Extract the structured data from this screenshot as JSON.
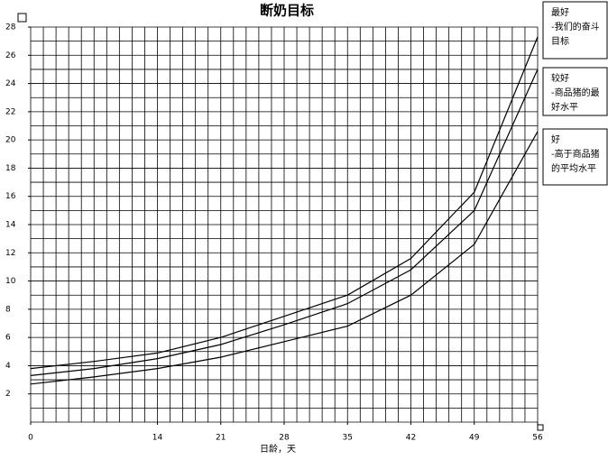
{
  "chart_data": {
    "type": "line",
    "title": "断奶目标",
    "x_label": "日龄，天",
    "x": [
      0,
      7,
      14,
      21,
      28,
      35,
      42,
      49,
      56
    ],
    "series": [
      {
        "color": "#000000",
        "values": [
          3.8,
          4.3,
          4.9,
          6.0,
          7.5,
          9.0,
          11.6,
          16.3,
          27.3
        ]
      },
      {
        "color": "#000000",
        "values": [
          3.3,
          3.8,
          4.5,
          5.5,
          6.9,
          8.4,
          10.8,
          15.0,
          25.0
        ]
      },
      {
        "color": "#000000",
        "values": [
          2.7,
          3.2,
          3.8,
          4.6,
          5.7,
          6.8,
          9.0,
          12.6,
          20.6
        ]
      }
    ],
    "xlim": [
      0,
      56
    ],
    "xticks": [
      0,
      14,
      21,
      28,
      35,
      42,
      49,
      56
    ],
    "ylim": [
      0,
      28
    ],
    "yticks": [
      2,
      4,
      6,
      8,
      10,
      12,
      14,
      16,
      18,
      20,
      22,
      24,
      26,
      28
    ],
    "grid": true,
    "annotations": [
      {
        "lines": [
          "最好",
          "-我们的奋斗",
          "目标"
        ]
      },
      {
        "lines": [
          "较好",
          "-商品猪的最",
          "好水平"
        ]
      },
      {
        "lines": [
          "好",
          "-高于商品猪",
          "的平均水平"
        ]
      }
    ]
  }
}
